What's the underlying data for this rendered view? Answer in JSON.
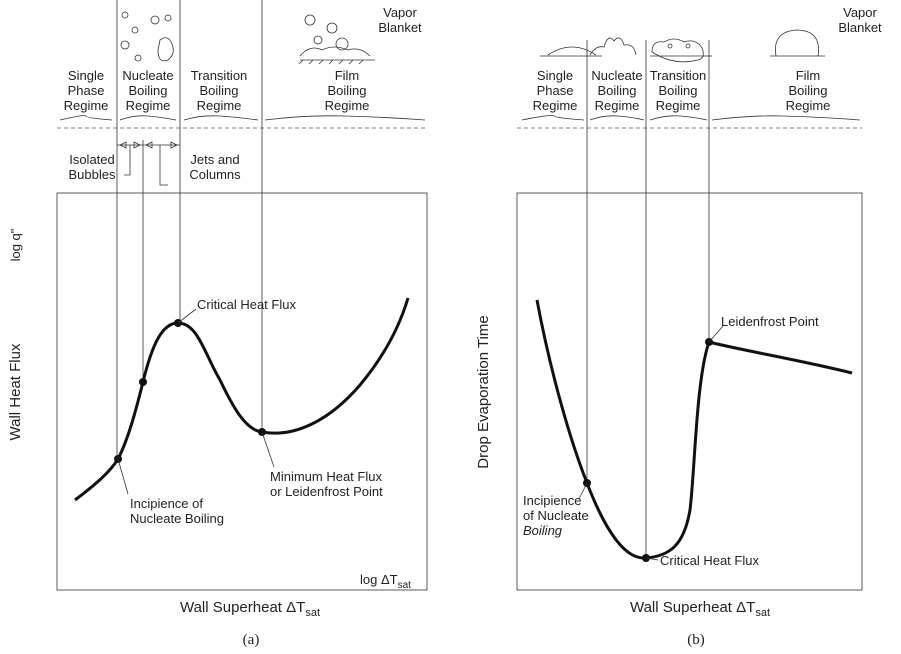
{
  "panel_a": {
    "regimes": [
      [
        "Single",
        "Phase",
        "Regime"
      ],
      [
        "Nucleate",
        "Boiling",
        "Regime"
      ],
      [
        "Transition",
        "Boiling",
        "Regime"
      ],
      [
        "Film",
        "Boiling",
        "Regime"
      ]
    ],
    "vapor_blanket": [
      "Vapor",
      "Blanket"
    ],
    "isolated_bubbles": [
      "Isolated",
      "Bubbles"
    ],
    "jets_columns": [
      "Jets and",
      "Columns"
    ],
    "y_axis_top": "log q\"",
    "y_axis_label": "Wall Heat Flux",
    "x_axis_end": {
      "main": "log ΔT",
      "sub": "sat"
    },
    "x_axis_label": {
      "main": "Wall Superheat ΔT",
      "sub": "sat"
    },
    "critical_heat_flux": "Critical Heat Flux",
    "minimum_heat_flux": [
      "Minimum Heat Flux",
      "or Leidenfrost Point"
    ],
    "incipience": [
      "Incipience of",
      "Nucleate Boiling"
    ],
    "caption": "(a)"
  },
  "panel_b": {
    "regimes": [
      [
        "Single",
        "Phase",
        "Regime"
      ],
      [
        "Nucleate",
        "Boiling",
        "Regime"
      ],
      [
        "Transition",
        "Boiling",
        "Regime"
      ],
      [
        "Film",
        "Boiling",
        "Regime"
      ]
    ],
    "vapor_blanket": [
      "Vapor",
      "Blanket"
    ],
    "y_axis_label": "Drop Evaporation Time",
    "x_axis_label": {
      "main": "Wall Superheat ΔT",
      "sub": "sat"
    },
    "leidenfrost_point": "Leidenfrost Point",
    "incipience": [
      "Incipience",
      "of Nucleate",
      "Boiling"
    ],
    "critical_heat_flux": "Critical Heat Flux",
    "caption": "(b)"
  }
}
